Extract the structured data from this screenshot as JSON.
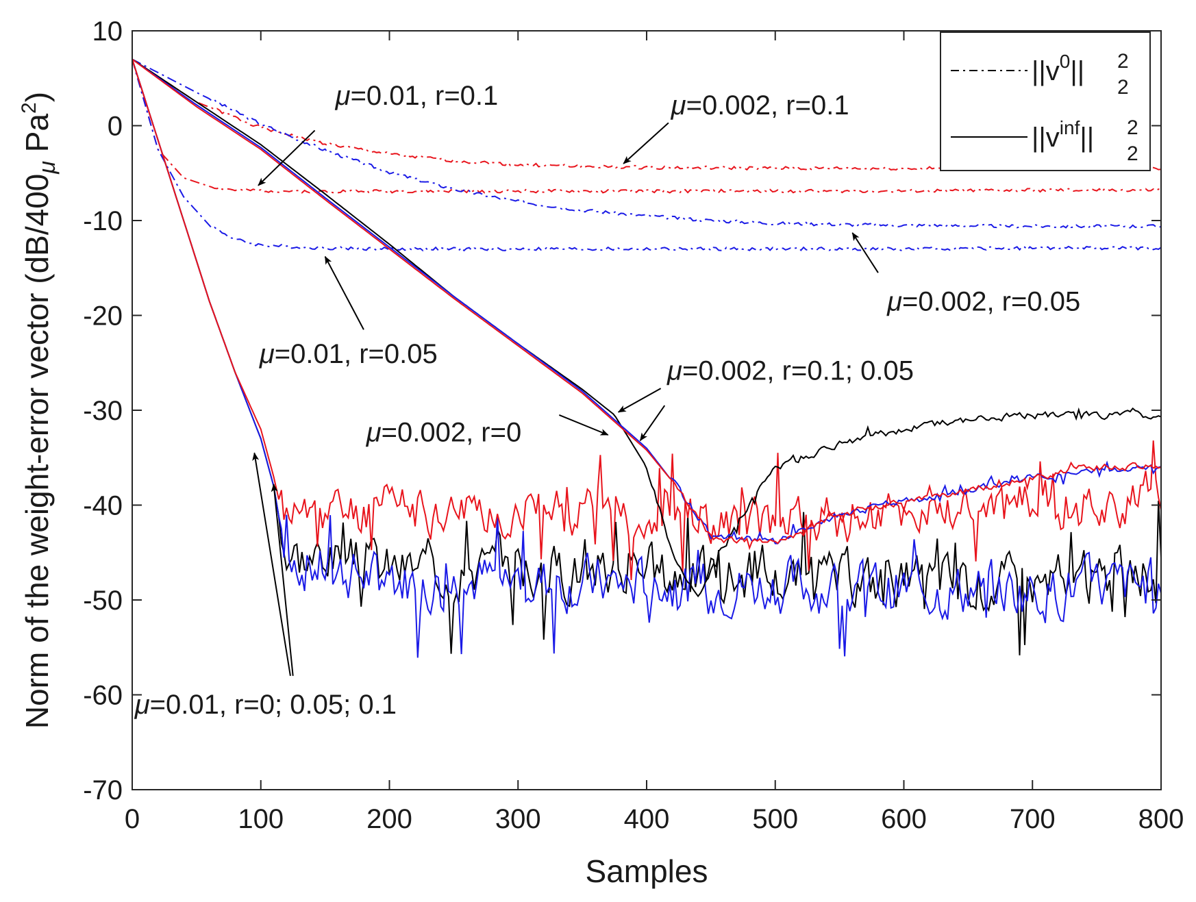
{
  "chart_data": {
    "type": "line",
    "xlabel": "Samples",
    "ylabel": "Norm of the weight-error vector (dB/400",
    "ylabel_mu": "μ",
    "ylabel_unit": " Pa",
    "ylabel_exp": "2",
    "ylabel_close": ")",
    "xlim": [
      0,
      800
    ],
    "ylim": [
      -70,
      10
    ],
    "grid": false,
    "xticks": [
      0,
      100,
      200,
      300,
      400,
      500,
      600,
      700,
      800
    ],
    "yticks": [
      -70,
      -60,
      -50,
      -40,
      -30,
      -20,
      -10,
      0,
      10
    ],
    "xtick_labels": [
      "0",
      "100",
      "200",
      "300",
      "400",
      "500",
      "600",
      "700",
      "800"
    ],
    "ytick_labels": [
      "-70",
      "-60",
      "-50",
      "-40",
      "-30",
      "-20",
      "-10",
      "0",
      "10"
    ],
    "legend": {
      "position": "top-right",
      "entries": [
        {
          "style": "dash-dot",
          "base": "||v",
          "sup": "0",
          "close": "||",
          "sub": "2",
          "sup2": "2"
        },
        {
          "style": "solid",
          "base": "||v",
          "sup": "inf",
          "close": "||",
          "sub": "2",
          "sup2": "2"
        }
      ]
    },
    "colors": {
      "red": "#e8141c",
      "blue": "#1a1ae6",
      "black": "#000000"
    },
    "series": [
      {
        "name": "||v0||², μ=0.002, r=0.1",
        "color": "red",
        "style": "dashdot",
        "x": [
          0,
          50,
          100,
          150,
          200,
          250,
          300,
          350,
          400,
          500,
          600,
          700,
          800
        ],
        "y": [
          7,
          2.5,
          -0.2,
          -1.9,
          -3.0,
          -3.7,
          -4.1,
          -4.3,
          -4.4,
          -4.5,
          -4.5,
          -4.5,
          -4.5
        ]
      },
      {
        "name": "||v0||², μ=0.01, r=0.1",
        "color": "red",
        "style": "dashdot",
        "x": [
          0,
          20,
          40,
          60,
          80,
          120,
          200,
          300,
          400,
          500,
          600,
          700,
          800
        ],
        "y": [
          7,
          -2.5,
          -5.5,
          -6.4,
          -6.8,
          -6.9,
          -6.9,
          -6.9,
          -6.9,
          -6.9,
          -6.9,
          -6.8,
          -6.8
        ]
      },
      {
        "name": "||v0||², μ=0.002, r=0.05",
        "color": "blue",
        "style": "dashdot",
        "x": [
          0,
          50,
          100,
          150,
          200,
          250,
          300,
          350,
          400,
          450,
          500,
          600,
          700,
          800
        ],
        "y": [
          7,
          3.5,
          0.2,
          -2.6,
          -4.9,
          -6.7,
          -8.0,
          -8.9,
          -9.5,
          -10.0,
          -10.3,
          -10.5,
          -10.6,
          -10.6
        ]
      },
      {
        "name": "||v0||², μ=0.01, r=0.05",
        "color": "blue",
        "style": "dashdot",
        "x": [
          0,
          20,
          40,
          60,
          80,
          100,
          150,
          200,
          300,
          400,
          500,
          600,
          700,
          800
        ],
        "y": [
          7,
          -2.5,
          -7.5,
          -10.5,
          -12.0,
          -12.6,
          -12.9,
          -13.0,
          -13.0,
          -13.0,
          -13.0,
          -13.0,
          -12.9,
          -12.9
        ]
      },
      {
        "name": "||vinf||², μ=0.01, r=0",
        "color": "black",
        "style": "solid",
        "x": [
          0,
          20,
          40,
          60,
          80,
          100,
          110,
          115,
          120,
          200,
          300,
          400,
          500,
          600,
          700,
          800
        ],
        "y": [
          7,
          -1.5,
          -10,
          -18.5,
          -26,
          -33,
          -38,
          -42,
          -45,
          -46.5,
          -46.5,
          -47,
          -47.5,
          -48,
          -48,
          -47.5
        ],
        "noise": 4.5,
        "noise_start": 115,
        "seed": 3
      },
      {
        "name": "||vinf||², μ=0.01, r=0.05",
        "color": "blue",
        "style": "solid",
        "x": [
          0,
          20,
          40,
          60,
          80,
          100,
          110,
          115,
          120,
          200,
          300,
          400,
          500,
          600,
          700,
          800
        ],
        "y": [
          7,
          -1.5,
          -10,
          -18.5,
          -26,
          -33,
          -38,
          -42,
          -46,
          -48,
          -48,
          -48.5,
          -48.5,
          -49,
          -49,
          -48.5
        ],
        "noise": 4.5,
        "noise_start": 115,
        "seed": 7
      },
      {
        "name": "||vinf||², μ=0.01, r=0.1",
        "color": "red",
        "style": "solid",
        "x": [
          0,
          20,
          40,
          60,
          80,
          100,
          110,
          115,
          120,
          200,
          300,
          400,
          500,
          600,
          700,
          800
        ],
        "y": [
          7,
          -1.5,
          -10,
          -18.5,
          -26,
          -32,
          -37,
          -40,
          -41,
          -40.5,
          -40.5,
          -41,
          -42,
          -41,
          -40,
          -40
        ],
        "noise": 4.0,
        "noise_start": 115,
        "seed": 11
      },
      {
        "name": "||vinf||², μ=0.002, r=0",
        "color": "black",
        "style": "solid",
        "x": [
          0,
          50,
          100,
          150,
          200,
          250,
          300,
          350,
          375,
          400,
          420,
          440,
          460,
          480,
          500,
          550,
          600,
          650,
          700,
          750,
          800
        ],
        "y": [
          7,
          2.5,
          -2.0,
          -7.2,
          -12.5,
          -18.0,
          -23.0,
          -27.8,
          -30.5,
          -36.0,
          -45.0,
          -50.0,
          -44.0,
          -40.0,
          -36.0,
          -33.5,
          -32.0,
          -31.0,
          -30.5,
          -30.5,
          -30.5
        ],
        "noise": 0.6,
        "noise_start": 400,
        "seed": 21
      },
      {
        "name": "||vinf||², μ=0.002, r=0.05",
        "color": "blue",
        "style": "solid",
        "x": [
          0,
          50,
          100,
          150,
          200,
          250,
          300,
          350,
          400,
          420,
          450,
          500,
          550,
          600,
          650,
          700,
          750,
          800
        ],
        "y": [
          7,
          2.2,
          -2.3,
          -7.6,
          -12.8,
          -18.0,
          -23.0,
          -28.0,
          -34.0,
          -37.5,
          -43.0,
          -44.0,
          -41.0,
          -39.5,
          -38.5,
          -37.0,
          -36.5,
          -36.0
        ],
        "noise": 0.6,
        "noise_start": 420,
        "seed": 29
      },
      {
        "name": "||vinf||², μ=0.002, r=0.1",
        "color": "red",
        "style": "solid",
        "x": [
          0,
          50,
          100,
          150,
          200,
          250,
          300,
          350,
          400,
          420,
          450,
          500,
          550,
          600,
          650,
          700,
          750,
          800
        ],
        "y": [
          7,
          2.0,
          -2.5,
          -7.8,
          -13.0,
          -18.2,
          -23.2,
          -28.2,
          -34.2,
          -37.5,
          -43.5,
          -44.0,
          -41.0,
          -39.5,
          -38.5,
          -37.0,
          -36.0,
          -36.0
        ],
        "noise": 0.6,
        "noise_start": 420,
        "seed": 37
      }
    ],
    "annotations": [
      {
        "text": "=0.01, r=0.1",
        "mu": "μ",
        "text_at": [
          158,
          2.2
        ],
        "arrow_from": [
          142,
          -0.5
        ],
        "arrow_to": [
          98,
          -6.3
        ]
      },
      {
        "text": "=0.002, r=0.1",
        "mu": "μ",
        "text_at": [
          419,
          1.2
        ],
        "arrow_from": [
          417,
          0.3
        ],
        "arrow_to": [
          382,
          -4.0
        ]
      },
      {
        "text": "=0.01, r=0.05",
        "mu": "μ",
        "text_at": [
          99,
          -25
        ],
        "arrow_from": [
          180,
          -21.5
        ],
        "arrow_to": [
          150,
          -13.8
        ]
      },
      {
        "text": "=0.002, r=0.05",
        "mu": "μ",
        "text_at": [
          587,
          -19.5
        ],
        "arrow_from": [
          580,
          -15.5
        ],
        "arrow_to": [
          560,
          -11.3
        ]
      },
      {
        "text": "=0.002, r=0.1; 0.05",
        "mu": "μ",
        "text_at": [
          416,
          -26.8
        ],
        "arrow_from": [
          411,
          -27.7
        ],
        "arrow_to": [
          378,
          -30.2
        ],
        "arrow2_from": [
          414,
          -29.5
        ],
        "arrow2_to": [
          395,
          -33.2
        ]
      },
      {
        "text": "=0.002, r=0",
        "mu": "μ",
        "text_at": [
          182,
          -33.3
        ],
        "arrow_from": [
          332,
          -30.5
        ],
        "arrow_to": [
          370,
          -32.6
        ]
      },
      {
        "text": "=0.01, r=0; 0.05; 0.1",
        "mu": "μ",
        "text_at": [
          2,
          -62
        ],
        "arrow_from": [
          123,
          -58.0
        ],
        "arrow_to": [
          95,
          -34.5
        ],
        "arrow2_from": [
          125,
          -58.0
        ],
        "arrow2_to": [
          110,
          -37.8
        ]
      }
    ]
  }
}
